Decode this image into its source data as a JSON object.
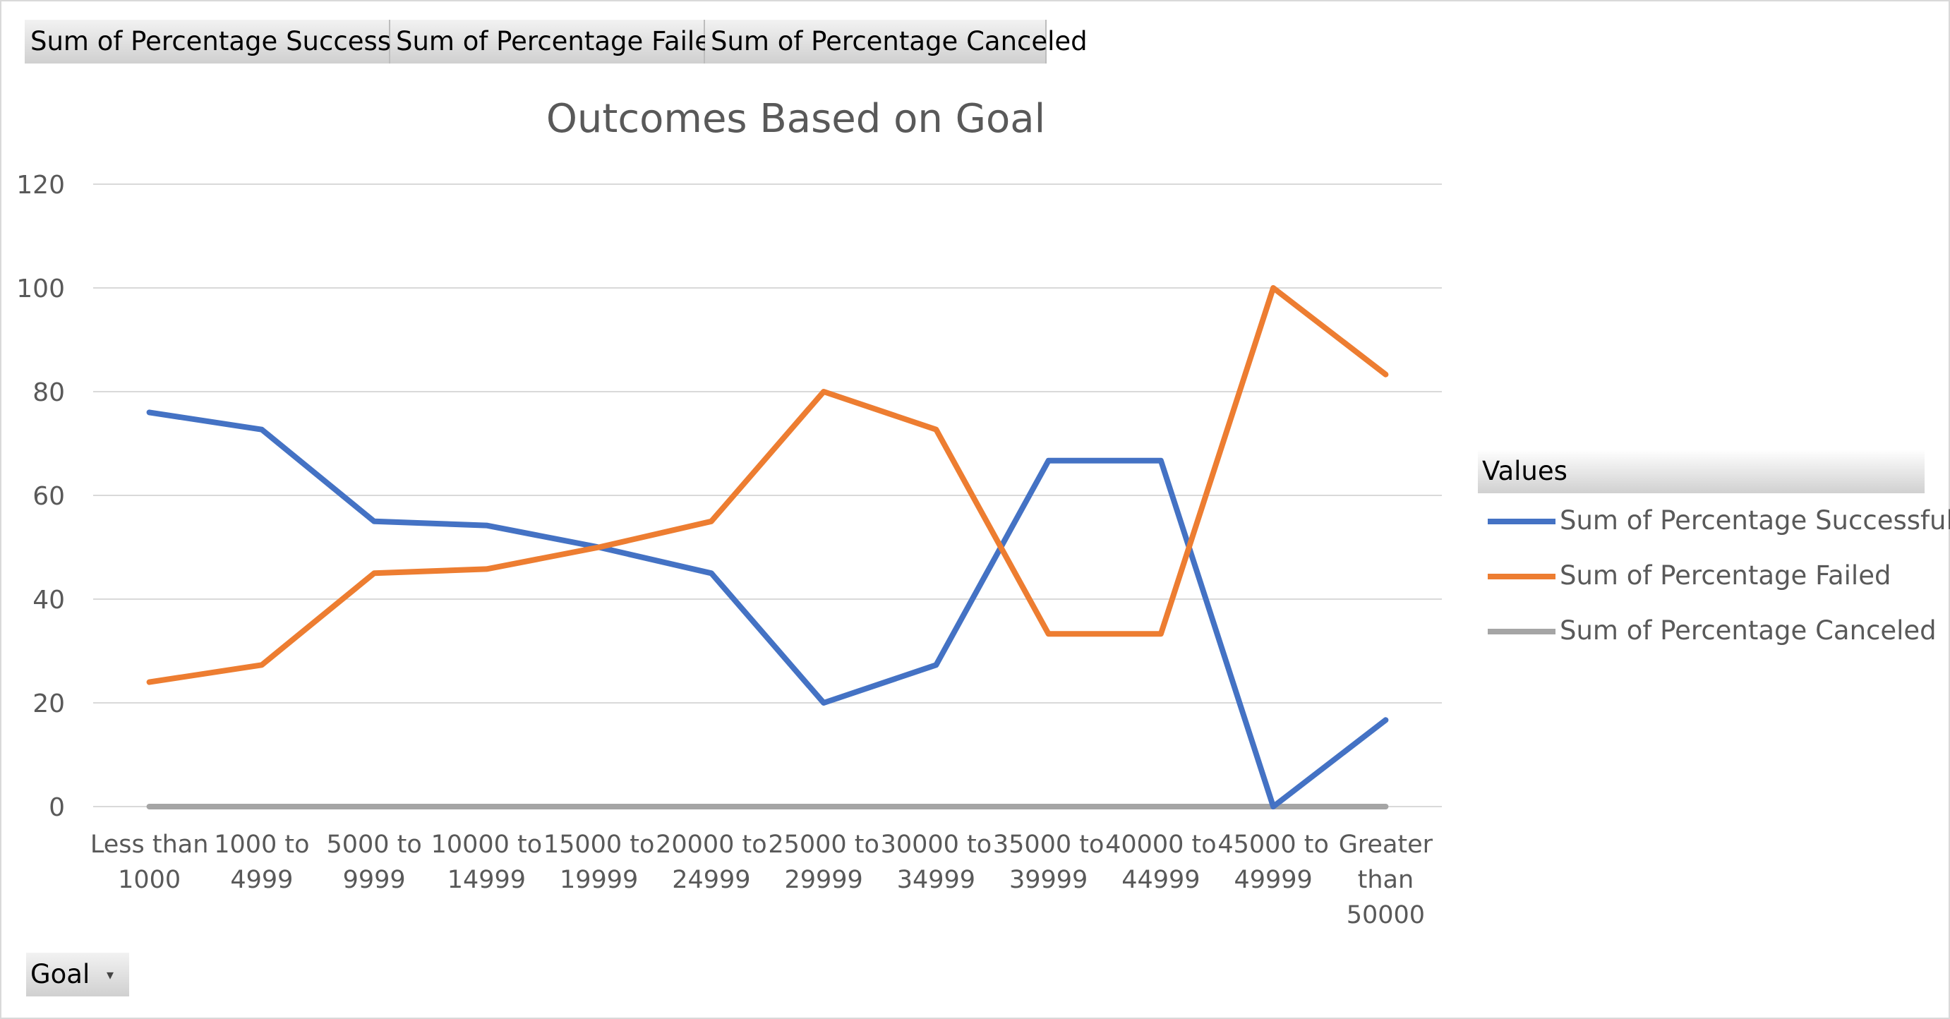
{
  "field_buttons": {
    "successful": "Sum of Percentage  Successful",
    "failed": "Sum of Percentage  Failed",
    "canceled": "Sum of Percentage  Canceled"
  },
  "filter_button": {
    "label": "Goal",
    "icon": "dropdown-arrow-icon"
  },
  "legend": {
    "header": "Values",
    "items": [
      {
        "label": "Sum of Percentage Successful",
        "color": "#4472c4"
      },
      {
        "label": "Sum of Percentage Failed",
        "color": "#ed7d31"
      },
      {
        "label": "Sum of Percentage Canceled",
        "color": "#a5a5a5"
      }
    ]
  },
  "chart_data": {
    "type": "line",
    "title": "Outcomes Based on Goal",
    "xlabel": "",
    "ylabel": "",
    "ylim": [
      0,
      120
    ],
    "yticks": [
      0,
      20,
      40,
      60,
      80,
      100,
      120
    ],
    "grid": true,
    "legend_position": "right",
    "categories": [
      [
        "Less than",
        "1000"
      ],
      [
        "1000 to",
        "4999"
      ],
      [
        "5000 to",
        "9999"
      ],
      [
        "10000 to",
        "14999"
      ],
      [
        "15000 to",
        "19999"
      ],
      [
        "20000 to",
        "24999"
      ],
      [
        "25000 to",
        "29999"
      ],
      [
        "30000 to",
        "34999"
      ],
      [
        "35000 to",
        "39999"
      ],
      [
        "40000 to",
        "44999"
      ],
      [
        "45000 to",
        "49999"
      ],
      [
        "Greater",
        "than",
        "50000"
      ]
    ],
    "series": [
      {
        "name": "Sum of Percentage Successful",
        "color": "#4472c4",
        "values": [
          76,
          72.7,
          55,
          54.2,
          50,
          45,
          20,
          27.3,
          66.7,
          66.7,
          0,
          16.7
        ]
      },
      {
        "name": "Sum of Percentage Failed",
        "color": "#ed7d31",
        "values": [
          24,
          27.3,
          45,
          45.8,
          50,
          55,
          80,
          72.7,
          33.3,
          33.3,
          100,
          83.3
        ]
      },
      {
        "name": "Sum of Percentage Canceled",
        "color": "#a5a5a5",
        "values": [
          0,
          0,
          0,
          0,
          0,
          0,
          0,
          0,
          0,
          0,
          0,
          0
        ]
      }
    ]
  }
}
